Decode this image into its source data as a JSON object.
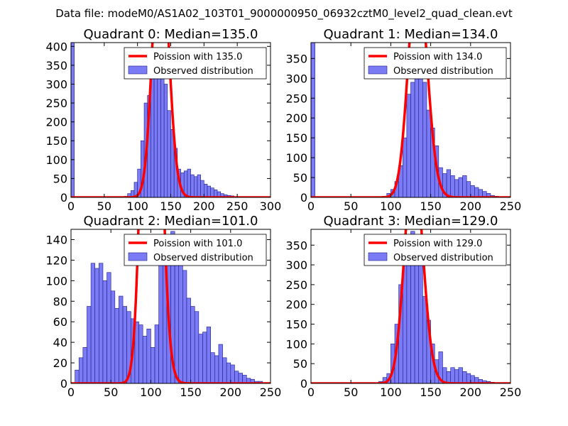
{
  "figure": {
    "suptitle": "Data file: modeM0/AS1A02_103T01_9000000950_06932cztM0_level2_quad_clean.evt",
    "colors": {
      "bars": "#7b7bf5",
      "bar_edge": "#1c1c8a",
      "poisson": "#ff0000"
    }
  },
  "chart_data": [
    {
      "type": "bar",
      "title": "Quadrant 0: Median=135.0",
      "legend": [
        "Poission with 135.0",
        "Observed distribution"
      ],
      "legend_position": "top-right",
      "xlim": [
        0,
        300
      ],
      "ylim": [
        0,
        410
      ],
      "xticks": [
        0,
        50,
        100,
        150,
        200,
        250,
        300
      ],
      "yticks": [
        0,
        50,
        100,
        150,
        200,
        250,
        300,
        350,
        400
      ],
      "bin_width": 5,
      "bins": [
        [
          0,
          410
        ],
        [
          80,
          3
        ],
        [
          85,
          10
        ],
        [
          90,
          18
        ],
        [
          95,
          40
        ],
        [
          100,
          75
        ],
        [
          105,
          150
        ],
        [
          110,
          250
        ],
        [
          115,
          270
        ],
        [
          120,
          320
        ],
        [
          125,
          375
        ],
        [
          130,
          375
        ],
        [
          135,
          340
        ],
        [
          140,
          300
        ],
        [
          145,
          230
        ],
        [
          150,
          180
        ],
        [
          155,
          130
        ],
        [
          160,
          75
        ],
        [
          165,
          65
        ],
        [
          170,
          70
        ],
        [
          175,
          75
        ],
        [
          180,
          60
        ],
        [
          185,
          55
        ],
        [
          190,
          60
        ],
        [
          195,
          45
        ],
        [
          200,
          35
        ],
        [
          205,
          30
        ],
        [
          210,
          25
        ],
        [
          215,
          20
        ],
        [
          220,
          15
        ],
        [
          225,
          10
        ],
        [
          230,
          7
        ],
        [
          235,
          5
        ],
        [
          240,
          4
        ]
      ],
      "poisson_mean": 135.0
    },
    {
      "type": "bar",
      "title": "Quadrant 1: Median=134.0",
      "legend": [
        "Poission with 134.0",
        "Observed distribution"
      ],
      "legend_position": "top-right",
      "xlim": [
        0,
        250
      ],
      "ylim": [
        0,
        390
      ],
      "xticks": [
        0,
        50,
        100,
        150,
        200,
        250
      ],
      "yticks": [
        0,
        50,
        100,
        150,
        200,
        250,
        300,
        350
      ],
      "bin_width": 5,
      "bins": [
        [
          0,
          390
        ],
        [
          90,
          3
        ],
        [
          95,
          10
        ],
        [
          100,
          20
        ],
        [
          105,
          40
        ],
        [
          110,
          80
        ],
        [
          115,
          150
        ],
        [
          120,
          260
        ],
        [
          125,
          290
        ],
        [
          130,
          365
        ],
        [
          135,
          360
        ],
        [
          140,
          290
        ],
        [
          145,
          220
        ],
        [
          150,
          175
        ],
        [
          155,
          130
        ],
        [
          160,
          75
        ],
        [
          165,
          60
        ],
        [
          170,
          70
        ],
        [
          175,
          55
        ],
        [
          180,
          45
        ],
        [
          185,
          50
        ],
        [
          190,
          55
        ],
        [
          195,
          40
        ],
        [
          200,
          30
        ],
        [
          205,
          25
        ],
        [
          210,
          20
        ],
        [
          215,
          15
        ],
        [
          220,
          10
        ],
        [
          225,
          5
        ],
        [
          230,
          3
        ]
      ],
      "poisson_mean": 134.0
    },
    {
      "type": "bar",
      "title": "Quadrant 2: Median=101.0",
      "legend": [
        "Poission with 101.0",
        "Observed distribution"
      ],
      "legend_position": "top-right",
      "xlim": [
        0,
        250
      ],
      "ylim": [
        0,
        150
      ],
      "xticks": [
        0,
        50,
        100,
        150,
        200,
        250
      ],
      "yticks": [
        0,
        20,
        40,
        60,
        80,
        100,
        120,
        140
      ],
      "bin_width": 5,
      "bins": [
        [
          5,
          13
        ],
        [
          10,
          25
        ],
        [
          15,
          35
        ],
        [
          20,
          75
        ],
        [
          25,
          117
        ],
        [
          30,
          112
        ],
        [
          35,
          117
        ],
        [
          40,
          100
        ],
        [
          45,
          108
        ],
        [
          50,
          90
        ],
        [
          55,
          73
        ],
        [
          60,
          85
        ],
        [
          65,
          75
        ],
        [
          70,
          70
        ],
        [
          75,
          63
        ],
        [
          80,
          60
        ],
        [
          85,
          57
        ],
        [
          90,
          46
        ],
        [
          95,
          53
        ],
        [
          100,
          35
        ],
        [
          105,
          57
        ],
        [
          110,
          120
        ],
        [
          115,
          125
        ],
        [
          120,
          120
        ],
        [
          125,
          148
        ],
        [
          130,
          120
        ],
        [
          135,
          115
        ],
        [
          140,
          110
        ],
        [
          145,
          83
        ],
        [
          150,
          75
        ],
        [
          155,
          70
        ],
        [
          160,
          48
        ],
        [
          165,
          50
        ],
        [
          170,
          55
        ],
        [
          175,
          30
        ],
        [
          180,
          27
        ],
        [
          185,
          38
        ],
        [
          190,
          25
        ],
        [
          195,
          20
        ],
        [
          200,
          18
        ],
        [
          205,
          12
        ],
        [
          210,
          10
        ],
        [
          215,
          8
        ],
        [
          220,
          5
        ],
        [
          225,
          4
        ],
        [
          230,
          2
        ],
        [
          235,
          2
        ]
      ],
      "poisson_mean": 101.0
    },
    {
      "type": "bar",
      "title": "Quadrant 3: Median=129.0",
      "legend": [
        "Poission with 129.0",
        "Observed distribution"
      ],
      "legend_position": "top-right",
      "xlim": [
        0,
        250
      ],
      "ylim": [
        0,
        390
      ],
      "xticks": [
        0,
        50,
        100,
        150,
        200,
        250
      ],
      "yticks": [
        0,
        50,
        100,
        150,
        200,
        250,
        300,
        350
      ],
      "bin_width": 5,
      "bins": [
        [
          85,
          5
        ],
        [
          90,
          15
        ],
        [
          95,
          25
        ],
        [
          100,
          100
        ],
        [
          105,
          150
        ],
        [
          110,
          250
        ],
        [
          115,
          320
        ],
        [
          120,
          375
        ],
        [
          125,
          385
        ],
        [
          130,
          360
        ],
        [
          135,
          300
        ],
        [
          140,
          220
        ],
        [
          145,
          160
        ],
        [
          150,
          100
        ],
        [
          155,
          60
        ],
        [
          160,
          80
        ],
        [
          165,
          40
        ],
        [
          170,
          30
        ],
        [
          175,
          40
        ],
        [
          180,
          35
        ],
        [
          185,
          40
        ],
        [
          190,
          30
        ],
        [
          195,
          25
        ],
        [
          200,
          20
        ],
        [
          205,
          15
        ],
        [
          210,
          10
        ],
        [
          215,
          7
        ],
        [
          220,
          5
        ],
        [
          225,
          3
        ],
        [
          230,
          2
        ]
      ],
      "poisson_mean": 129.0
    }
  ]
}
